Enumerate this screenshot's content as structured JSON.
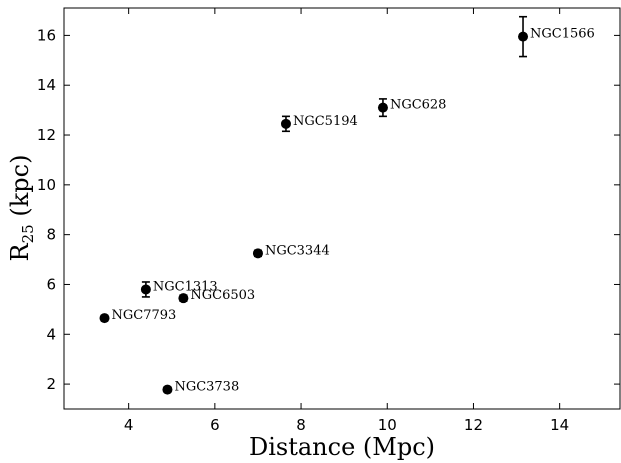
{
  "chart_data": {
    "type": "scatter",
    "xlabel": "Distance (Mpc)",
    "ylabel": {
      "main": "R",
      "sub": "25",
      "unit": " (kpc)"
    },
    "xlim": [
      2.5,
      15.4
    ],
    "ylim": [
      1.0,
      17.1
    ],
    "xticks": [
      4,
      6,
      8,
      10,
      12,
      14
    ],
    "yticks": [
      2,
      4,
      6,
      8,
      10,
      12,
      14,
      16
    ],
    "grid": false,
    "points": [
      {
        "label": "NGC1566",
        "x": 13.15,
        "y": 15.95,
        "yerr": 0.8
      },
      {
        "label": "NGC628",
        "x": 9.9,
        "y": 13.1,
        "yerr": 0.35
      },
      {
        "label": "NGC5194",
        "x": 7.65,
        "y": 12.45,
        "yerr": 0.3
      },
      {
        "label": "NGC3344",
        "x": 7.0,
        "y": 7.25,
        "yerr": 0.12
      },
      {
        "label": "NGC1313",
        "x": 4.4,
        "y": 5.8,
        "yerr": 0.3
      },
      {
        "label": "NGC6503",
        "x": 5.27,
        "y": 5.45,
        "yerr": 0.12
      },
      {
        "label": "NGC7793",
        "x": 3.44,
        "y": 4.65,
        "yerr": 0.1
      },
      {
        "label": "NGC3738",
        "x": 4.9,
        "y": 1.78,
        "yerr": 0.1
      }
    ]
  }
}
